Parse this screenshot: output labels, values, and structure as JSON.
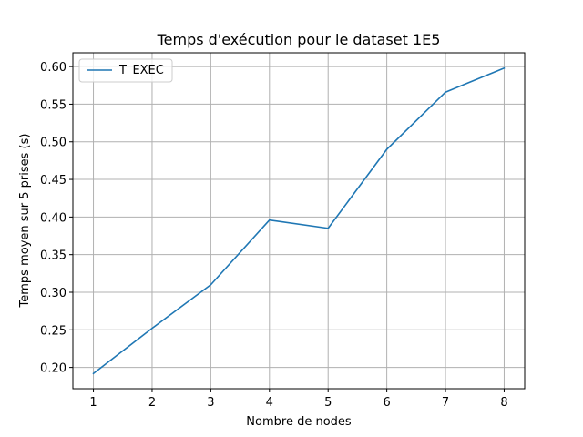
{
  "chart_data": {
    "type": "line",
    "title": "Temps d'exécution pour le dataset 1E5",
    "xlabel": "Nombre de nodes",
    "ylabel": "Temps moyen sur 5 prises (s)",
    "x": [
      1,
      2,
      3,
      4,
      5,
      6,
      7,
      8
    ],
    "series": [
      {
        "name": "T_EXEC",
        "color": "#1f77b4",
        "values": [
          0.192,
          0.252,
          0.31,
          0.396,
          0.385,
          0.49,
          0.566,
          0.598
        ]
      }
    ],
    "xticks": [
      "1",
      "2",
      "3",
      "4",
      "5",
      "6",
      "7",
      "8"
    ],
    "yticks": [
      "0.20",
      "0.25",
      "0.30",
      "0.35",
      "0.40",
      "0.45",
      "0.50",
      "0.55",
      "0.60"
    ],
    "xlim": [
      0.65,
      8.35
    ],
    "ylim": [
      0.1717,
      0.6183
    ],
    "grid": true,
    "legend_position": "top-left"
  }
}
